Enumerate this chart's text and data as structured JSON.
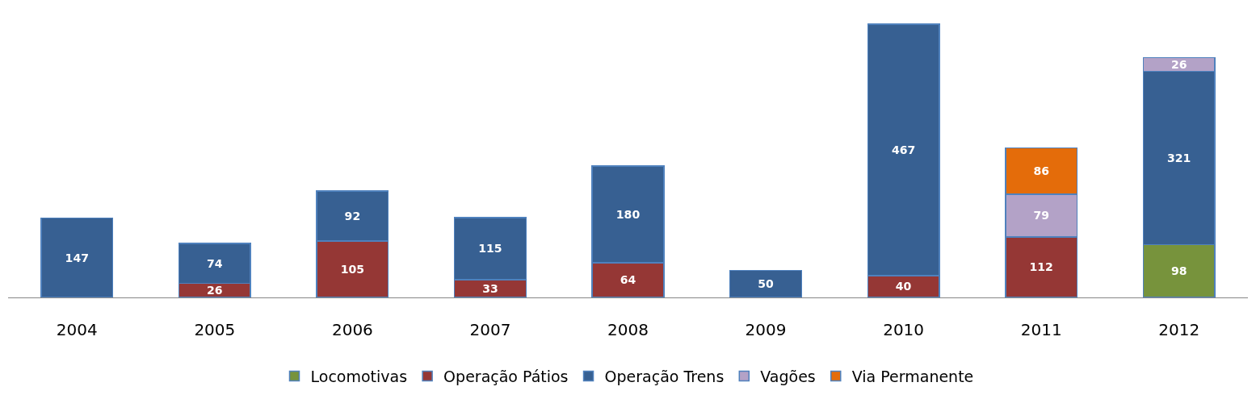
{
  "chart_data": {
    "type": "bar",
    "stacked": true,
    "data_labels": true,
    "legend": "bottom",
    "categories": [
      "2004",
      "2005",
      "2006",
      "2007",
      "2008",
      "2009",
      "2010",
      "2011",
      "2012"
    ],
    "series": [
      {
        "name": "Locomotivas",
        "color": "#77933c",
        "values": [
          null,
          null,
          null,
          null,
          null,
          null,
          null,
          null,
          98
        ]
      },
      {
        "name": "Operação Pátios",
        "color": "#953735",
        "values": [
          null,
          26,
          105,
          33,
          64,
          null,
          40,
          112,
          null
        ]
      },
      {
        "name": "Operação Trens",
        "color": "#376092",
        "values": [
          147,
          74,
          92,
          115,
          180,
          50,
          467,
          null,
          321
        ]
      },
      {
        "name": "Vagões",
        "color": "#b3a2c7",
        "values": [
          null,
          null,
          null,
          null,
          null,
          null,
          null,
          79,
          26
        ]
      },
      {
        "name": "Via Permanente",
        "color": "#e46c0a",
        "values": [
          null,
          null,
          null,
          null,
          null,
          null,
          null,
          86,
          null
        ]
      }
    ]
  }
}
